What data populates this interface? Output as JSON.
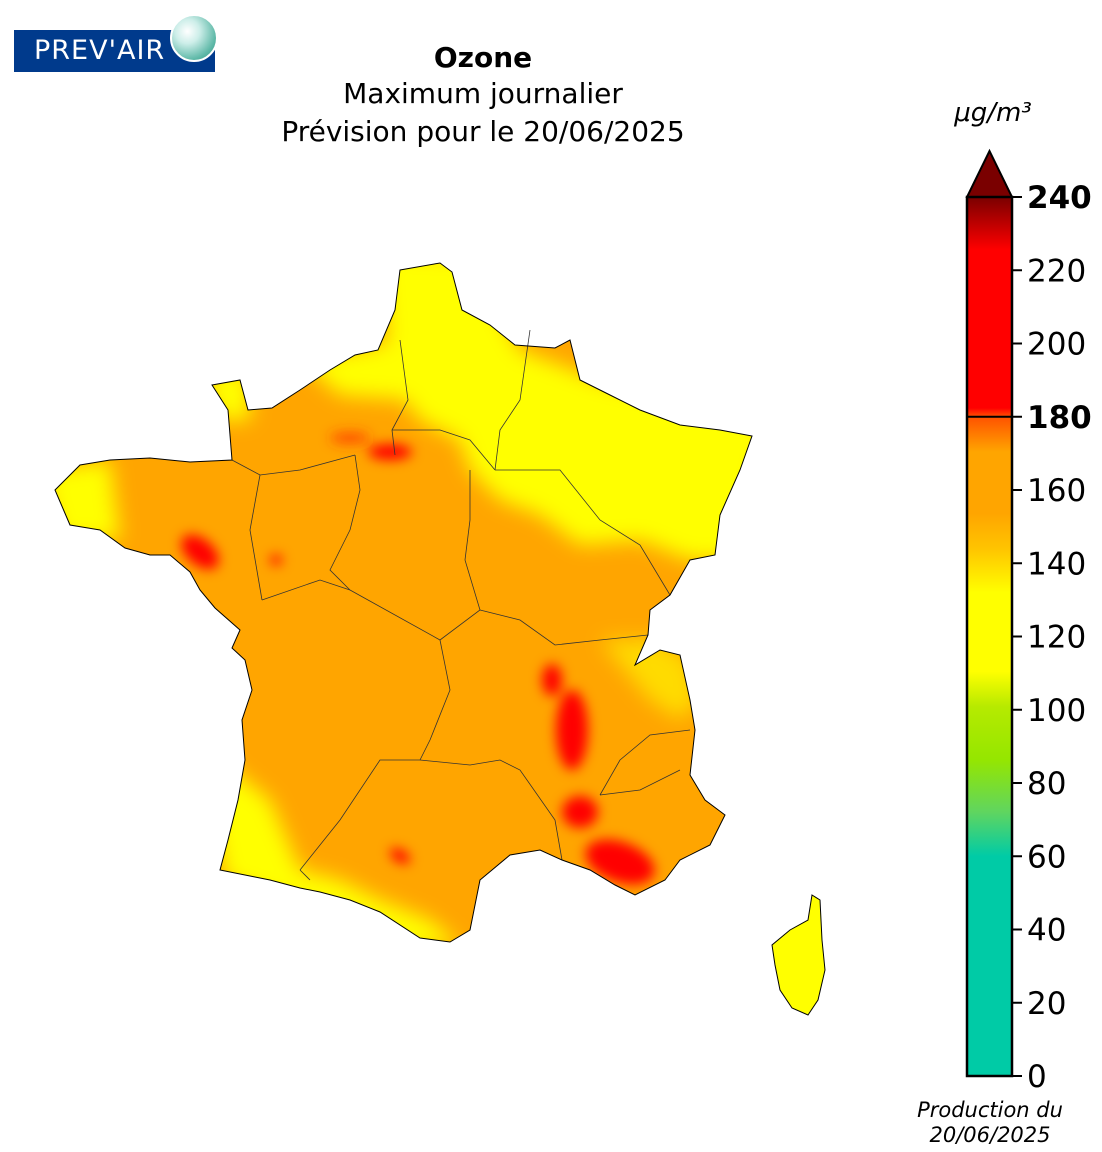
{
  "logo": {
    "text": "PREV'AIR"
  },
  "header": {
    "title": "Ozone",
    "subtitle": "Maximum journalier",
    "forecast": "Prévision pour le 20/06/2025"
  },
  "legend": {
    "unit": "μg/m³",
    "ticks": [
      {
        "value": 0,
        "label": "0",
        "bold": false
      },
      {
        "value": 20,
        "label": "20",
        "bold": false
      },
      {
        "value": 40,
        "label": "40",
        "bold": false
      },
      {
        "value": 60,
        "label": "60",
        "bold": false
      },
      {
        "value": 80,
        "label": "80",
        "bold": false
      },
      {
        "value": 100,
        "label": "100",
        "bold": false
      },
      {
        "value": 120,
        "label": "120",
        "bold": false
      },
      {
        "value": 140,
        "label": "140",
        "bold": false
      },
      {
        "value": 160,
        "label": "160",
        "bold": false
      },
      {
        "value": 180,
        "label": "180",
        "bold": true
      },
      {
        "value": 200,
        "label": "200",
        "bold": false
      },
      {
        "value": 220,
        "label": "220",
        "bold": false
      },
      {
        "value": 240,
        "label": "240",
        "bold": true
      }
    ],
    "range": [
      0,
      240
    ],
    "threshold": 180,
    "colors": {
      "teal": "#00cba6",
      "green": "#95e600",
      "yellow": "#ffff00",
      "orange": "#ffa500",
      "red": "#ff0000",
      "darkred": "#7a0000"
    }
  },
  "footer": {
    "line1": "Production du",
    "line2": "20/06/2025"
  }
}
